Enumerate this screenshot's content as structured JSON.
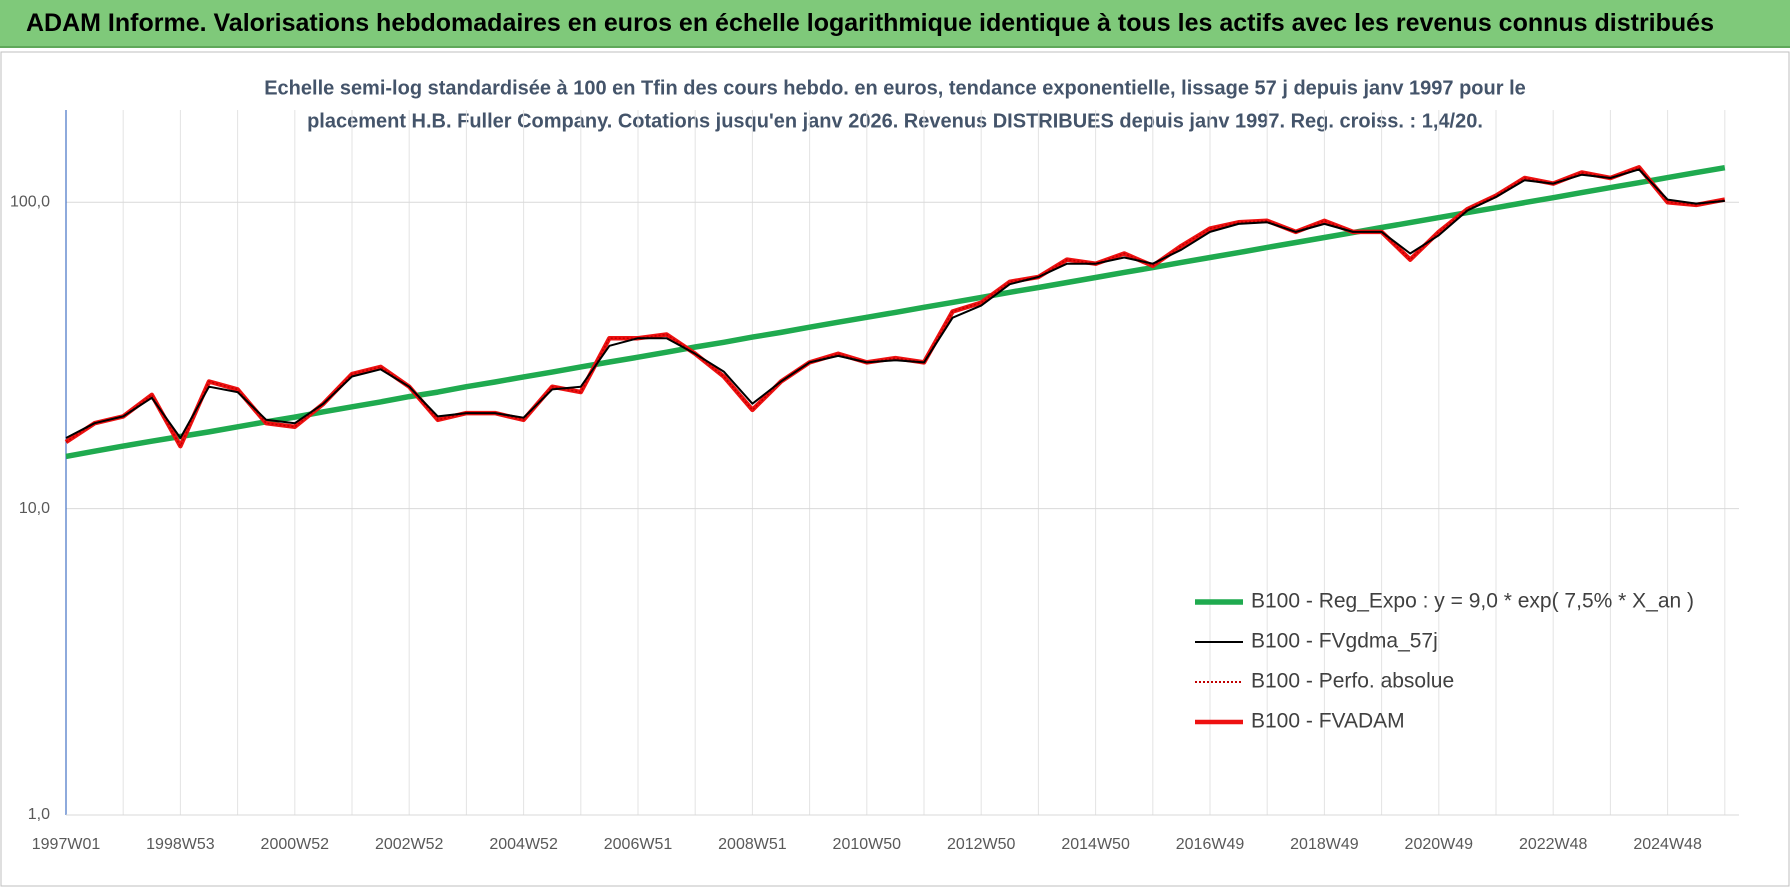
{
  "header": {
    "title": "ADAM Informe. Valorisations hebdomadaires en euros en échelle logarithmique identique à tous les actifs avec les revenus connus distribués"
  },
  "chart_data": {
    "type": "line",
    "subtitle": [
      "Echelle semi-log standardisée à 100 en Tfin des cours hebdo. en euros, tendance exponentielle, lissage 57 j depuis janv 1997 pour le",
      "placement H.B. Fuller Company. Cotations jusqu'en janv 2026. Revenus DISTRIBUES depuis janv 1997. Reg. croiss. : 1,4/20."
    ],
    "categories": [
      "1997W01",
      null,
      null,
      null,
      "1998W53",
      null,
      null,
      null,
      "2000W52",
      null,
      null,
      null,
      "2002W52",
      null,
      null,
      null,
      "2004W52",
      null,
      null,
      null,
      "2006W51",
      null,
      null,
      null,
      "2008W51",
      null,
      null,
      null,
      "2010W50",
      null,
      null,
      null,
      "2012W50",
      null,
      null,
      null,
      "2014W50",
      null,
      null,
      null,
      "2016W49",
      null,
      null,
      null,
      "2018W49",
      null,
      null,
      null,
      "2020W49",
      null,
      null,
      null,
      "2022W48",
      null,
      null,
      null,
      "2024W48",
      null,
      null
    ],
    "series": [
      {
        "name": "B100 - Reg_Expo : y = 9,0 * exp( 7,5% *  X_an )",
        "color": "#1faa4f",
        "values": [
          14.8,
          15.4,
          16.0,
          16.6,
          17.2,
          17.8,
          18.5,
          19.2,
          19.9,
          20.7,
          21.5,
          22.3,
          23.2,
          24.0,
          25.0,
          25.9,
          26.9,
          27.9,
          29.0,
          30.1,
          31.2,
          32.4,
          33.7,
          34.9,
          36.3,
          37.6,
          39.1,
          40.6,
          42.1,
          43.7,
          45.4,
          47.1,
          48.9,
          50.8,
          52.7,
          54.7,
          56.8,
          59.0,
          61.2,
          63.6,
          66.0,
          68.5,
          71.2,
          73.9,
          76.7,
          79.6,
          82.7,
          85.8,
          89.1,
          92.5,
          96.0,
          99.7,
          103.5,
          107.5,
          111.6,
          115.8,
          120.3,
          124.9,
          129.6
        ]
      },
      {
        "name": "B100 - FVgdma_57j",
        "color": "#000000",
        "values": [
          17,
          19,
          20,
          23,
          17,
          25,
          24,
          19.5,
          19,
          22,
          27,
          28.5,
          25,
          20,
          20.5,
          20.5,
          19.8,
          24.5,
          25,
          34,
          36,
          36,
          32,
          28,
          22,
          26,
          30,
          31.5,
          30,
          30.5,
          30,
          42,
          46,
          54,
          57,
          63,
          63,
          66,
          63,
          70,
          80,
          85,
          86,
          80,
          85,
          80,
          80,
          68,
          78,
          94,
          104,
          118,
          115,
          123,
          120,
          128,
          102,
          99,
          101
        ]
      },
      {
        "name": "B100 - Perfo. absolue",
        "color": "#c00000",
        "style": "dotted",
        "values": [
          16.5,
          19,
          20,
          23.5,
          16,
          26,
          24.5,
          19,
          18.5,
          22,
          27.5,
          29,
          25,
          19.5,
          20.5,
          20.5,
          19.5,
          25,
          24,
          36,
          36,
          37,
          32,
          27,
          21,
          26,
          30,
          32,
          30,
          31,
          30,
          44,
          47,
          55,
          57,
          65,
          63,
          68,
          62,
          72,
          82,
          86,
          87,
          80,
          87,
          80,
          80,
          65,
          80,
          95,
          105,
          120,
          115,
          125,
          120,
          130,
          100,
          98,
          102
        ]
      },
      {
        "name": "B100 - FVADAM",
        "color": "#ee1111",
        "values": [
          16.5,
          19,
          20,
          23.5,
          16,
          26,
          24.5,
          19,
          18.5,
          22,
          27.5,
          29,
          25,
          19.5,
          20.5,
          20.5,
          19.5,
          25,
          24,
          36,
          36,
          37,
          32,
          27,
          21,
          26,
          30,
          32,
          30,
          31,
          30,
          44,
          47,
          55,
          57,
          65,
          63,
          68,
          62,
          72,
          82,
          86,
          87,
          80,
          87,
          80,
          80,
          65,
          80,
          95,
          105,
          120,
          115,
          125,
          120,
          130,
          100,
          98,
          102
        ]
      }
    ],
    "log": true,
    "ylim": [
      1,
      200
    ],
    "yticks": [
      {
        "value": 1,
        "label": "1,0"
      },
      {
        "value": 10,
        "label": "10,0"
      },
      {
        "value": 100,
        "label": "100,0"
      }
    ],
    "grid": true
  }
}
